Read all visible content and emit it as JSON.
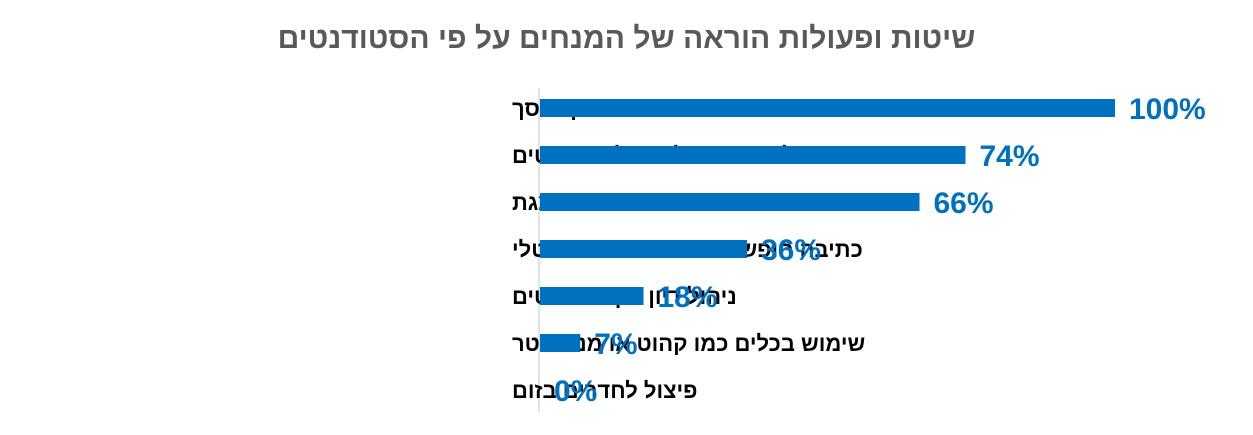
{
  "chart_data": {
    "type": "bar",
    "orientation": "horizontal",
    "title": "שיטות ופעולות הוראה של המנחים על פי הסטודנטים",
    "categories": [
      "שיתוף מסך",
      "הרצאה פרונטלית עם שאלות של סטודנטים",
      "שימוש במצגת",
      "כתיבה חופשית באמצעות עט דיגטלי",
      "ניהול דיון בין סטודנטים",
      "שימוש בכלים כמו קהוט או מנטימטר",
      "פיצול לחדרים בזום"
    ],
    "values": [
      100,
      74,
      66,
      36,
      18,
      7,
      0
    ],
    "value_labels": [
      "100%",
      "74%",
      "66%",
      "36%",
      "18%",
      "7%",
      "0%"
    ],
    "xlim": [
      0,
      100
    ],
    "unit": "%",
    "grid": false,
    "legend": "none",
    "bar_color": "#0070C0",
    "label_color": "#0070C0"
  }
}
